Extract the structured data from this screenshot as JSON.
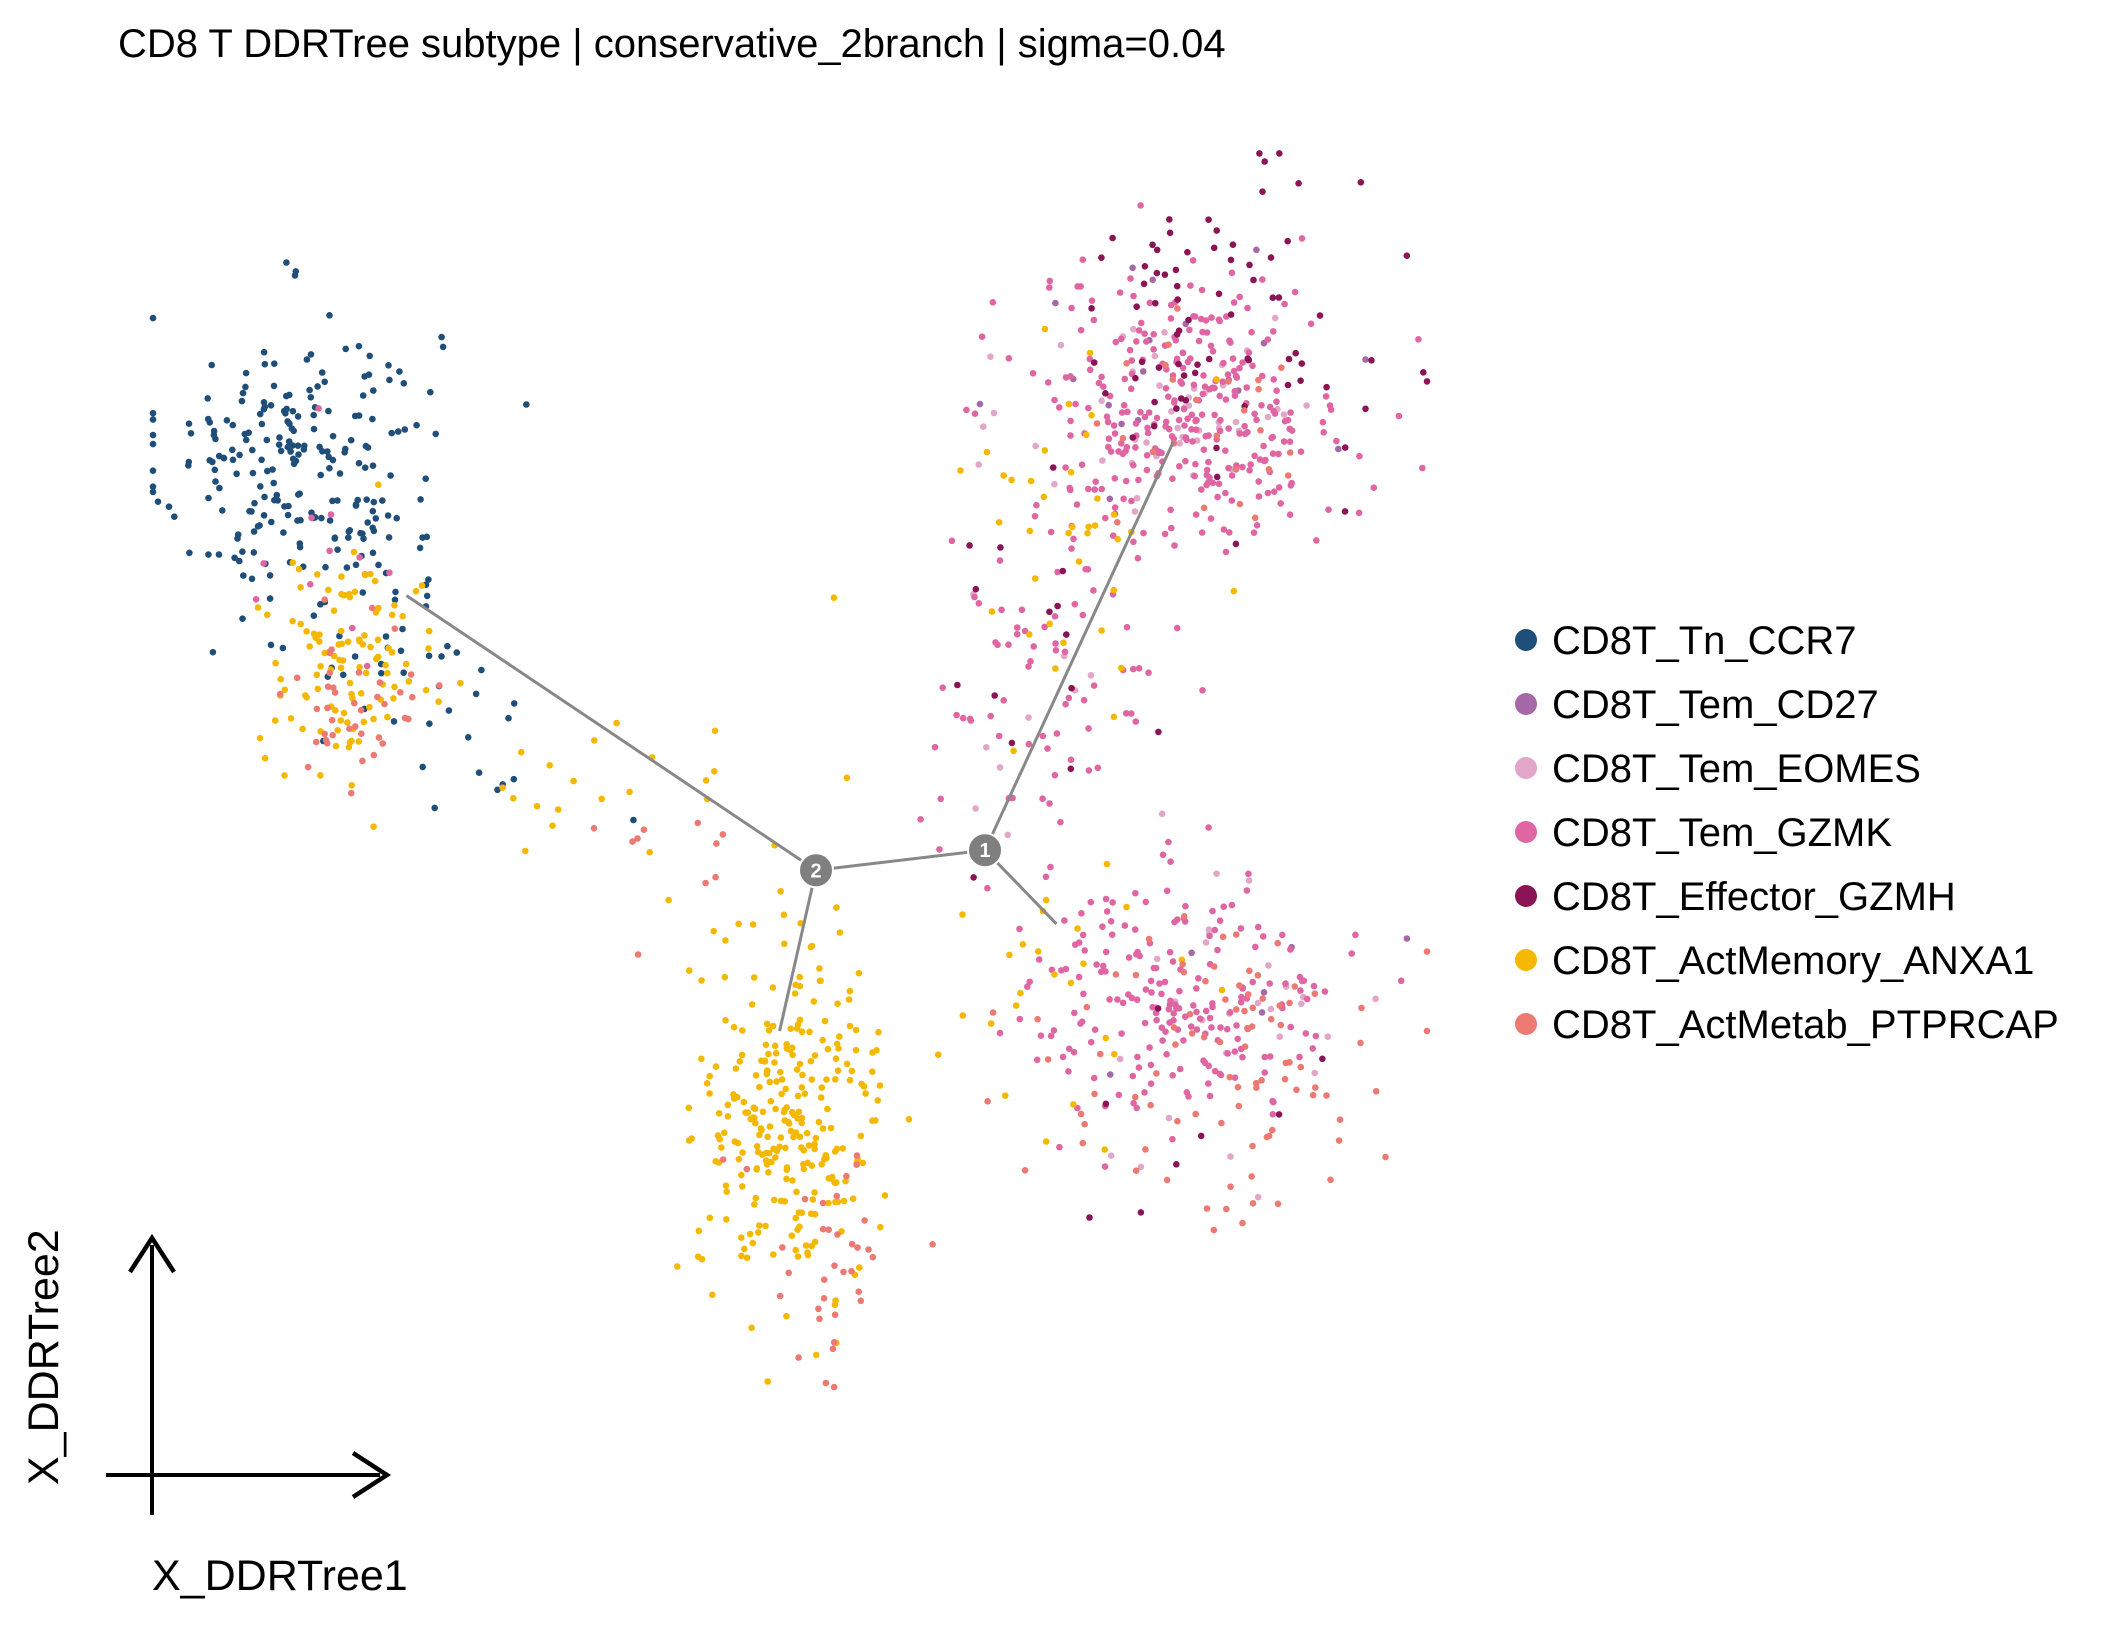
{
  "chart_data": {
    "type": "scatter",
    "title": "CD8 T DDRTree subtype | conservative_2branch | sigma=0.04",
    "xlabel": "X_DDRTree1",
    "ylabel": "X_DDRTree2",
    "grid": false,
    "legend_position": "right",
    "xlim": [
      0,
      100
    ],
    "ylim": [
      0,
      100
    ],
    "series": [
      {
        "name": "CD8T_Tn_CCR7",
        "color": "#1f4e79",
        "clusters": [
          {
            "cx": 12,
            "cy": 76,
            "sx": 5.5,
            "sy": 5.5,
            "n": 230
          },
          {
            "cx": 20,
            "cy": 62,
            "sx": 4,
            "sy": 3,
            "n": 30
          },
          {
            "cx": 28,
            "cy": 54,
            "sx": 6,
            "sy": 3,
            "n": 12
          }
        ]
      },
      {
        "name": "CD8T_Tem_CD27",
        "color": "#a569a8",
        "clusters": [
          {
            "cx": 79,
            "cy": 82,
            "sx": 6,
            "sy": 5,
            "n": 20
          },
          {
            "cx": 85,
            "cy": 35,
            "sx": 6,
            "sy": 5,
            "n": 6
          }
        ]
      },
      {
        "name": "CD8T_Tem_EOMES",
        "color": "#e2a6c9",
        "clusters": [
          {
            "cx": 80,
            "cy": 80,
            "sx": 6,
            "sy": 5,
            "n": 45
          },
          {
            "cx": 82,
            "cy": 34,
            "sx": 7,
            "sy": 6,
            "n": 28
          },
          {
            "cx": 70,
            "cy": 60,
            "sx": 4,
            "sy": 7,
            "n": 10
          }
        ]
      },
      {
        "name": "CD8T_Tem_GZMK",
        "color": "#e066a3",
        "clusters": [
          {
            "cx": 81,
            "cy": 80,
            "sx": 6,
            "sy": 5,
            "n": 300
          },
          {
            "cx": 80,
            "cy": 36,
            "sx": 6,
            "sy": 4.5,
            "n": 200
          },
          {
            "cx": 70,
            "cy": 60,
            "sx": 4.5,
            "sy": 8,
            "n": 80
          },
          {
            "cx": 15,
            "cy": 70,
            "sx": 3,
            "sy": 6,
            "n": 12
          }
        ]
      },
      {
        "name": "CD8T_Effector_GZMH",
        "color": "#8b1456",
        "clusters": [
          {
            "cx": 82,
            "cy": 86,
            "sx": 6,
            "sy": 6,
            "n": 75
          },
          {
            "cx": 70,
            "cy": 60,
            "sx": 4,
            "sy": 8,
            "n": 15
          },
          {
            "cx": 84,
            "cy": 31,
            "sx": 5,
            "sy": 5,
            "n": 8
          }
        ]
      },
      {
        "name": "CD8T_ActMemory_ANXA1",
        "color": "#f5b800",
        "clusters": [
          {
            "cx": 50,
            "cy": 27,
            "sx": 3.5,
            "sy": 6.5,
            "n": 280
          },
          {
            "cx": 16,
            "cy": 61,
            "sx": 3.5,
            "sy": 4,
            "n": 110
          },
          {
            "cx": 72,
            "cy": 72,
            "sx": 4.5,
            "sy": 7,
            "n": 40
          },
          {
            "cx": 71,
            "cy": 35,
            "sx": 4,
            "sy": 4,
            "n": 25
          },
          {
            "cx": 32,
            "cy": 51,
            "sx": 7,
            "sy": 4,
            "n": 20
          }
        ]
      },
      {
        "name": "CD8T_ActMetab_PTPRCAP",
        "color": "#ec7a73",
        "clusters": [
          {
            "cx": 84,
            "cy": 31,
            "sx": 7,
            "sy": 6,
            "n": 90
          },
          {
            "cx": 53,
            "cy": 16,
            "sx": 3,
            "sy": 5,
            "n": 35
          },
          {
            "cx": 16,
            "cy": 58,
            "sx": 3,
            "sy": 3,
            "n": 40
          },
          {
            "cx": 82,
            "cy": 78,
            "sx": 5,
            "sy": 5,
            "n": 25
          },
          {
            "cx": 40,
            "cy": 48,
            "sx": 5,
            "sy": 4,
            "n": 10
          }
        ]
      }
    ],
    "tree": {
      "nodes": [
        {
          "id": "1",
          "label": "1",
          "x": 65,
          "y": 47
        },
        {
          "id": "2",
          "label": "2",
          "x": 52,
          "y": 45.5
        }
      ],
      "edges": [
        [
          [
            52,
            45.5
          ],
          [
            65,
            47
          ]
        ],
        [
          [
            65,
            47
          ],
          [
            79.5,
            77.5
          ]
        ],
        [
          [
            65,
            47
          ],
          [
            70.5,
            41.5
          ]
        ],
        [
          [
            52,
            45.5
          ],
          [
            20.5,
            66
          ]
        ],
        [
          [
            52,
            45.5
          ],
          [
            49.2,
            33.5
          ]
        ]
      ]
    }
  }
}
